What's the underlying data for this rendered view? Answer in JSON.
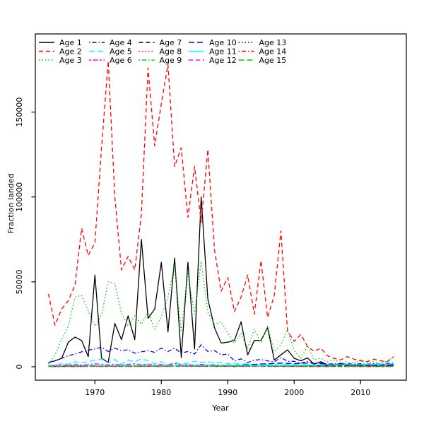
{
  "figure": {
    "background": "#ffffff",
    "axis_color": "#000000"
  },
  "chart_data": {
    "type": "line",
    "title": "",
    "xlabel": "Year",
    "ylabel": "Fraction landed",
    "grid": false,
    "legend_position": "top-left",
    "legend_columns": 5,
    "xlim": [
      1961,
      2017
    ],
    "ylim": [
      0,
      197000
    ],
    "xticks": [
      1970,
      1980,
      1990,
      2000,
      2010
    ],
    "yticks": [
      0,
      50000,
      100000,
      150000
    ],
    "ytick_labels": [
      "0",
      "50000",
      "100000",
      "150000"
    ],
    "x": [
      1963,
      1964,
      1965,
      1966,
      1967,
      1968,
      1969,
      1970,
      1971,
      1972,
      1973,
      1974,
      1975,
      1976,
      1977,
      1978,
      1979,
      1980,
      1981,
      1982,
      1983,
      1984,
      1985,
      1986,
      1987,
      1988,
      1989,
      1990,
      1991,
      1992,
      1993,
      1994,
      1995,
      1996,
      1997,
      1998,
      1999,
      2000,
      2001,
      2002,
      2003,
      2004,
      2005,
      2006,
      2007,
      2008,
      2009,
      2010,
      2011,
      2012,
      2013,
      2014,
      2015
    ],
    "series": [
      {
        "name": "Age 1",
        "color": "#000000",
        "linetype": "solid",
        "values": [
          2500,
          3500,
          5000,
          14500,
          17500,
          15500,
          6000,
          54000,
          5000,
          2500,
          25500,
          16000,
          30000,
          16000,
          75000,
          28500,
          34000,
          61500,
          20500,
          64000,
          5500,
          61500,
          10500,
          100000,
          40000,
          23000,
          14000,
          14500,
          15500,
          26500,
          7000,
          15500,
          15500,
          23000,
          4000,
          7000,
          10000,
          5000,
          3500,
          5200,
          1500,
          3000,
          1200,
          1000,
          2000,
          1200,
          800,
          1000,
          800,
          1000,
          800,
          1200,
          1000
        ]
      },
      {
        "name": "Age 2",
        "color": "#FF0000",
        "linetype": "dashed",
        "values": [
          43000,
          24500,
          34000,
          39000,
          48000,
          81500,
          65500,
          73000,
          129000,
          180000,
          100000,
          57000,
          65000,
          57000,
          90000,
          176000,
          130000,
          155000,
          178000,
          118000,
          129000,
          88000,
          118000,
          85000,
          128000,
          69000,
          44500,
          52500,
          32500,
          41000,
          54000,
          31000,
          62500,
          29000,
          42000,
          80000,
          21000,
          15000,
          19000,
          12000,
          9000,
          11000,
          6500,
          5000,
          4000,
          6000,
          4500,
          3500,
          3000,
          4500,
          3500,
          3000,
          6000
        ]
      },
      {
        "name": "Age 3",
        "color": "#00CD00",
        "linetype": "dotted",
        "values": [
          1500,
          7000,
          16000,
          24000,
          41000,
          42000,
          33000,
          24000,
          30500,
          50000,
          49000,
          31500,
          24000,
          30000,
          25000,
          32500,
          22000,
          29500,
          41000,
          60000,
          20500,
          55000,
          31000,
          62000,
          32000,
          25000,
          26500,
          20000,
          14000,
          19500,
          11000,
          22000,
          14500,
          24000,
          9000,
          13000,
          22000,
          9500,
          5000,
          12500,
          4000,
          5000,
          3000,
          4000,
          2500,
          3000,
          2000,
          4000,
          2500,
          3000,
          2000,
          3500,
          5500
        ]
      },
      {
        "name": "Age 4",
        "color": "#0000FF",
        "linetype": "dotdash",
        "values": [
          2500,
          3500,
          5000,
          6500,
          7500,
          8800,
          9800,
          10500,
          11500,
          9000,
          10900,
          9500,
          10000,
          8000,
          8800,
          9500,
          8500,
          11000,
          9000,
          11000,
          8000,
          9000,
          7500,
          13000,
          9000,
          9500,
          7000,
          7500,
          3500,
          4600,
          2500,
          3900,
          4200,
          3500,
          2900,
          5400,
          3200,
          3200,
          2100,
          3200,
          1800,
          2200,
          1500,
          1800,
          1500,
          1800,
          1500,
          1800,
          1500,
          1800,
          1500,
          2000,
          2200
        ]
      },
      {
        "name": "Age 5",
        "color": "#00FFFF",
        "linetype": "longdash",
        "values": [
          700,
          1100,
          1800,
          1500,
          3000,
          2200,
          3000,
          3900,
          4600,
          2200,
          4300,
          1500,
          3900,
          3000,
          4600,
          3500,
          1800,
          3000,
          1100,
          2600,
          1500,
          2200,
          3200,
          2600,
          3000,
          2200,
          2600,
          1800,
          2200,
          1500,
          1800,
          1300,
          1800,
          1300,
          1500,
          2000,
          1300,
          1500,
          1000,
          1300,
          800,
          1000,
          800,
          1000,
          800,
          1000,
          800,
          1000,
          800,
          1000,
          800,
          1200,
          1500
        ]
      },
      {
        "name": "Age 6",
        "color": "#FF00FF",
        "linetype": "twodash",
        "values": [
          600,
          800,
          1000,
          900,
          1400,
          1100,
          1300,
          1800,
          1400,
          1100,
          1500,
          1000,
          1400,
          1700,
          1200,
          1500,
          1000,
          1400,
          900,
          2000,
          1000,
          1300,
          900,
          1400,
          1000,
          1200,
          900,
          1100,
          800,
          1000,
          700,
          900,
          800,
          900,
          600,
          900,
          600,
          800,
          500,
          700,
          400,
          600,
          400,
          500,
          400,
          500,
          400,
          500,
          400,
          500,
          400,
          500,
          600
        ]
      },
      {
        "name": "Age 7",
        "color": "#000000",
        "linetype": "dashed",
        "values": [
          300,
          400,
          350,
          500,
          450,
          600,
          400,
          550,
          500,
          400,
          600,
          450,
          550,
          400,
          650,
          500,
          450,
          600,
          400,
          700,
          450,
          600,
          400,
          650,
          500,
          550,
          450,
          500,
          400,
          550,
          450,
          500,
          550,
          450,
          400,
          600,
          450,
          500,
          400,
          550,
          500,
          600,
          700,
          800,
          900,
          800,
          1000,
          900,
          1100,
          900,
          1000,
          900,
          1000
        ]
      },
      {
        "name": "Age 8",
        "color": "#FF0000",
        "linetype": "dotted",
        "values": [
          200,
          250,
          300,
          250,
          350,
          300,
          400,
          350,
          300,
          400,
          300,
          350,
          250,
          400,
          300,
          350,
          300,
          250,
          350,
          300,
          400,
          300,
          350,
          250,
          400,
          300,
          350,
          300,
          250,
          350,
          300,
          400,
          300,
          350,
          250,
          400,
          300,
          350,
          300,
          250,
          350,
          300,
          250,
          300,
          350,
          300,
          250,
          300,
          250,
          300,
          250,
          300,
          350
        ]
      },
      {
        "name": "Age 9",
        "color": "#00CD00",
        "linetype": "dotdash",
        "values": [
          150,
          200,
          250,
          200,
          300,
          250,
          350,
          300,
          250,
          350,
          250,
          300,
          200,
          350,
          250,
          300,
          250,
          200,
          300,
          250,
          350,
          250,
          300,
          200,
          350,
          250,
          300,
          250,
          200,
          300,
          250,
          350,
          250,
          300,
          200,
          350,
          250,
          300,
          250,
          200,
          300,
          250,
          200,
          250,
          300,
          250,
          200,
          250,
          200,
          250,
          200,
          250,
          300
        ]
      },
      {
        "name": "Age 10",
        "color": "#0000FF",
        "linetype": "longdash",
        "values": [
          300,
          350,
          400,
          450,
          500,
          550,
          600,
          650,
          600,
          550,
          600,
          650,
          700,
          600,
          650,
          700,
          600,
          650,
          700,
          750,
          700,
          650,
          700,
          750,
          800,
          750,
          800,
          850,
          900,
          1000,
          1200,
          1400,
          1600,
          1800,
          2000,
          2200,
          2000,
          1800,
          2000,
          2200,
          2000,
          1800,
          1600,
          1400,
          1500,
          1300,
          1400,
          1200,
          1300,
          1100,
          1200,
          1100,
          1200
        ]
      },
      {
        "name": "Age 11",
        "color": "#00FFFF",
        "linetype": "solid",
        "values": [
          300,
          350,
          400,
          380,
          450,
          420,
          500,
          480,
          550,
          500,
          580,
          540,
          600,
          560,
          620,
          580,
          640,
          600,
          660,
          620,
          680,
          640,
          700,
          660,
          720,
          680,
          740,
          700,
          760,
          720,
          780,
          740,
          800,
          760,
          820,
          780,
          840,
          800,
          900,
          950,
          1000,
          1050,
          1100,
          1150,
          1200,
          1250,
          1300,
          1350,
          1400,
          1450,
          1500,
          1600,
          1800
        ]
      },
      {
        "name": "Age 12",
        "color": "#FF00FF",
        "linetype": "dashed",
        "values": [
          100,
          150,
          120,
          180,
          140,
          200,
          160,
          220,
          180,
          240,
          200,
          260,
          220,
          280,
          240,
          300,
          260,
          320,
          280,
          340,
          300,
          320,
          280,
          300,
          260,
          280,
          240,
          260,
          220,
          240,
          200,
          220,
          180,
          200,
          160,
          180,
          140,
          160,
          120,
          140,
          100,
          120,
          100,
          120,
          100,
          120,
          100,
          120,
          100,
          120,
          100,
          120,
          140
        ]
      },
      {
        "name": "Age 13",
        "color": "#000000",
        "linetype": "dotted",
        "values": [
          100,
          120,
          140,
          160,
          180,
          200,
          220,
          240,
          220,
          200,
          220,
          240,
          260,
          240,
          220,
          240,
          260,
          280,
          260,
          240,
          260,
          280,
          300,
          280,
          260,
          280,
          300,
          280,
          260,
          240,
          260,
          280,
          260,
          240,
          220,
          240,
          260,
          240,
          220,
          200,
          220,
          240,
          220,
          200,
          180,
          200,
          220,
          200,
          180,
          160,
          180,
          200,
          220
        ]
      },
      {
        "name": "Age 14",
        "color": "#FF0000",
        "linetype": "dotdash",
        "values": [
          100,
          150,
          200,
          150,
          250,
          200,
          300,
          250,
          200,
          300,
          200,
          250,
          150,
          300,
          200,
          250,
          200,
          150,
          250,
          200,
          300,
          200,
          250,
          150,
          300,
          200,
          250,
          200,
          150,
          250,
          200,
          300,
          250,
          300,
          200,
          350,
          250,
          300,
          250,
          200,
          300,
          250,
          400,
          350,
          300,
          350,
          300,
          250,
          300,
          250,
          300,
          350,
          400
        ]
      },
      {
        "name": "Age 15",
        "color": "#00CD00",
        "linetype": "longdash",
        "values": [
          200,
          250,
          300,
          280,
          320,
          300,
          350,
          330,
          300,
          350,
          300,
          320,
          280,
          350,
          300,
          330,
          300,
          280,
          330,
          300,
          350,
          300,
          330,
          280,
          350,
          300,
          330,
          300,
          280,
          330,
          300,
          350,
          300,
          330,
          280,
          350,
          300,
          330,
          300,
          280,
          330,
          300,
          280,
          300,
          330,
          300,
          280,
          300,
          280,
          300,
          280,
          300,
          320
        ]
      }
    ]
  }
}
